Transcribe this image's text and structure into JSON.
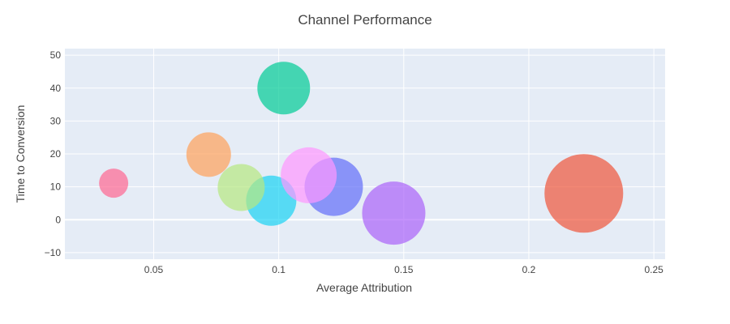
{
  "chart_data": {
    "type": "scatter",
    "title": "Channel Performance",
    "xlabel": "Average  Attribution",
    "ylabel": "Time to Conversion",
    "xlim": [
      0.0145,
      0.2545
    ],
    "ylim": [
      -12,
      52
    ],
    "xticks": [
      "0.05",
      "0.1",
      "0.15",
      "0.2",
      "0.25"
    ],
    "yticks": [
      "−10",
      "0",
      "10",
      "20",
      "30",
      "40",
      "50"
    ],
    "grid": true,
    "legend": "none",
    "points": [
      {
        "x": 0.222,
        "y": 8,
        "size": 97,
        "color": "#EF553B"
      },
      {
        "x": 0.146,
        "y": 2,
        "size": 78,
        "color": "#AB63FA"
      },
      {
        "x": 0.122,
        "y": 10,
        "size": 72,
        "color": "#636EFA"
      },
      {
        "x": 0.102,
        "y": 40,
        "size": 65,
        "color": "#00CC96"
      },
      {
        "x": 0.097,
        "y": 5.8,
        "size": 62,
        "color": "#19D3F3"
      },
      {
        "x": 0.112,
        "y": 13.5,
        "size": 69,
        "color": "#FF97FF"
      },
      {
        "x": 0.085,
        "y": 9.8,
        "size": 58,
        "color": "#B6E880"
      },
      {
        "x": 0.072,
        "y": 19.8,
        "size": 55,
        "color": "#FFA15A"
      },
      {
        "x": 0.034,
        "y": 11.1,
        "size": 36,
        "color": "#FF6692"
      }
    ]
  }
}
